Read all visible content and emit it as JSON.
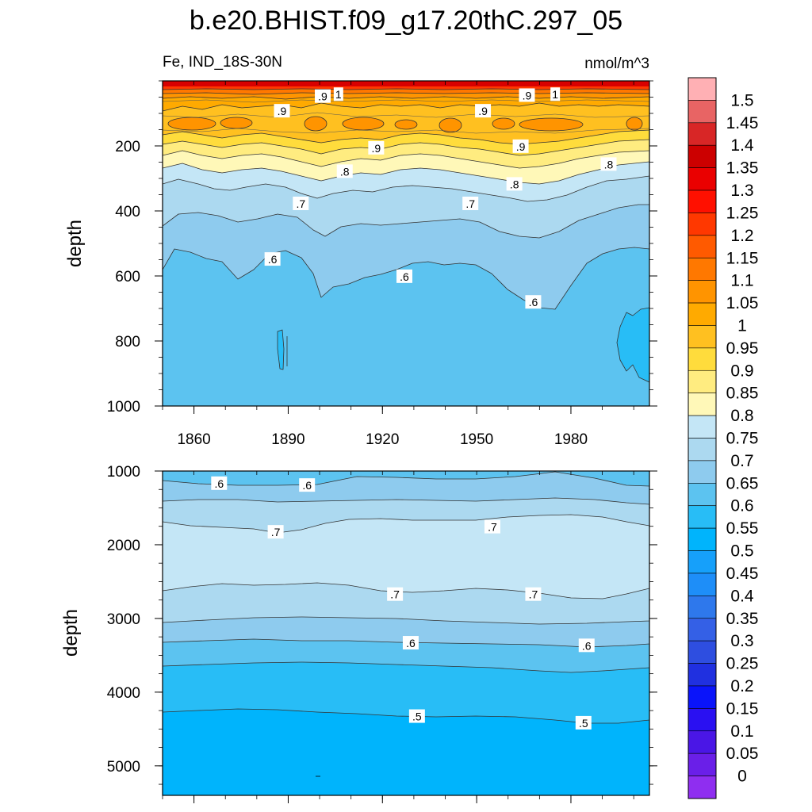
{
  "chart_data": {
    "type": "contour",
    "title": "b.e20.BHIST.f09_g17.20thC.297_05",
    "subtitle_left": "Fe, IND_18S-30N",
    "subtitle_right": "nmol/m^3",
    "ylabel": "depth",
    "xlim": [
      1850,
      2005
    ],
    "x_ticks": [
      "1860",
      "1890",
      "1920",
      "1950",
      "1980"
    ],
    "x_tick_values": [
      1860,
      1890,
      1920,
      1950,
      1980
    ],
    "colorbar": {
      "levels": [
        "0",
        "0.05",
        "0.1",
        "0.15",
        "0.2",
        "0.25",
        "0.3",
        "0.35",
        "0.4",
        "0.45",
        "0.5",
        "0.55",
        "0.6",
        "0.65",
        "0.7",
        "0.75",
        "0.8",
        "0.85",
        "0.9",
        "0.95",
        "1",
        "1.05",
        "1.1",
        "1.15",
        "1.2",
        "1.25",
        "1.3",
        "1.35",
        "1.4",
        "1.45",
        "1.5"
      ],
      "colors": [
        "#8f2ef0",
        "#6a1fe8",
        "#4a16e6",
        "#2a10f2",
        "#0a14fa",
        "#2030e0",
        "#2e4ee0",
        "#3460e6",
        "#2e78ec",
        "#1e8ef8",
        "#16a0fa",
        "#00b4fc",
        "#28bdf6",
        "#5cc3f0",
        "#8ecbee",
        "#acd9f0",
        "#c4e6f6",
        "#fff8b8",
        "#ffec80",
        "#ffdc3c",
        "#ffc020",
        "#ffaa00",
        "#ff9400",
        "#ff7800",
        "#ff5a00",
        "#ff3800",
        "#ff1000",
        "#ea0000",
        "#cc0000",
        "#d82626",
        "#e86464",
        "#ffb0b4"
      ]
    },
    "panels": [
      {
        "name": "upper",
        "ylim": [
          0,
          1000
        ],
        "y_ticks": [
          "200",
          "400",
          "600",
          "800",
          "1000"
        ],
        "y_tick_values": [
          200,
          400,
          600,
          800,
          1000
        ],
        "contour_labels": [
          {
            "text": ".9",
            "x": 1901,
            "y": 48
          },
          {
            "text": "1",
            "x": 1906,
            "y": 42
          },
          {
            "text": ".9",
            "x": 1888,
            "y": 93
          },
          {
            "text": ".9",
            "x": 1966,
            "y": 45
          },
          {
            "text": "1",
            "x": 1975,
            "y": 42
          },
          {
            "text": ".9",
            "x": 1952,
            "y": 93
          },
          {
            "text": ".9",
            "x": 1918,
            "y": 207
          },
          {
            "text": ".9",
            "x": 1964,
            "y": 202
          },
          {
            "text": ".8",
            "x": 1908,
            "y": 279
          },
          {
            "text": ".8",
            "x": 1962,
            "y": 318
          },
          {
            "text": ".8",
            "x": 1992,
            "y": 257
          },
          {
            "text": ".7",
            "x": 1894,
            "y": 378
          },
          {
            "text": ".7",
            "x": 1948,
            "y": 378
          },
          {
            "text": ".6",
            "x": 1885,
            "y": 549
          },
          {
            "text": ".6",
            "x": 1927,
            "y": 602
          },
          {
            "text": ".6",
            "x": 1968,
            "y": 681
          }
        ]
      },
      {
        "name": "lower",
        "ylim": [
          1000,
          5400
        ],
        "y_ticks": [
          "1000",
          "2000",
          "3000",
          "4000",
          "5000"
        ],
        "y_tick_values": [
          1000,
          2000,
          3000,
          4000,
          5000
        ],
        "contour_labels": [
          {
            "text": ".6",
            "x": 1868,
            "y": 1170
          },
          {
            "text": ".6",
            "x": 1896,
            "y": 1195
          },
          {
            "text": ".7",
            "x": 1886,
            "y": 1830
          },
          {
            "text": ".7",
            "x": 1955,
            "y": 1760
          },
          {
            "text": ".7",
            "x": 1924,
            "y": 2675
          },
          {
            "text": ".7",
            "x": 1968,
            "y": 2675
          },
          {
            "text": ".6",
            "x": 1929,
            "y": 3335
          },
          {
            "text": ".6",
            "x": 1985,
            "y": 3370
          },
          {
            "text": ".5",
            "x": 1931,
            "y": 4330
          },
          {
            "text": ".5",
            "x": 1984,
            "y": 4420
          }
        ]
      }
    ]
  }
}
